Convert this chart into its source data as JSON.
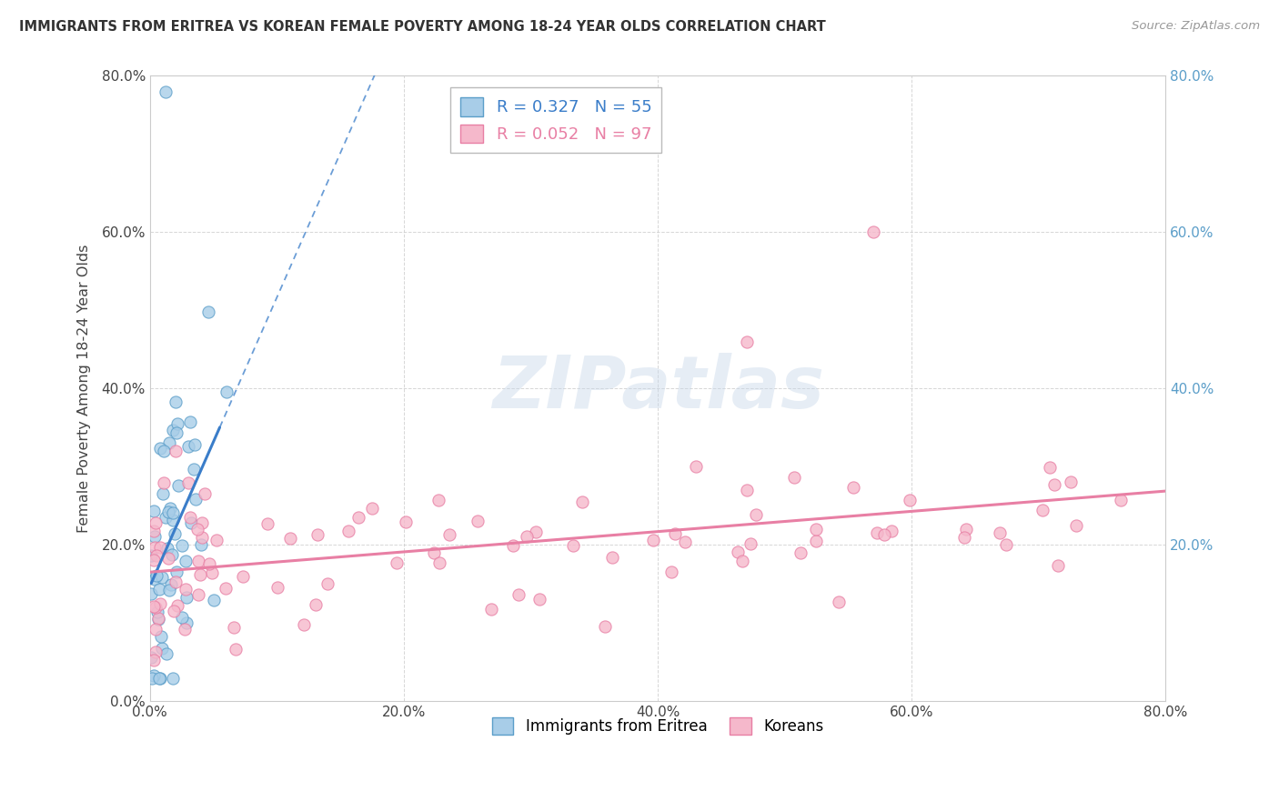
{
  "title": "IMMIGRANTS FROM ERITREA VS KOREAN FEMALE POVERTY AMONG 18-24 YEAR OLDS CORRELATION CHART",
  "source": "Source: ZipAtlas.com",
  "ylabel": "Female Poverty Among 18-24 Year Olds",
  "xlim": [
    0,
    0.8
  ],
  "ylim": [
    0,
    0.8
  ],
  "xticks": [
    0.0,
    0.2,
    0.4,
    0.6,
    0.8
  ],
  "yticks": [
    0.0,
    0.2,
    0.4,
    0.6,
    0.8
  ],
  "xticklabels": [
    "0.0%",
    "20.0%",
    "40.0%",
    "60.0%",
    "80.0%"
  ],
  "yticklabels": [
    "0.0%",
    "20.0%",
    "40.0%",
    "60.0%",
    "80.0%"
  ],
  "right_yticklabels": [
    "",
    "20.0%",
    "40.0%",
    "60.0%",
    "80.0%"
  ],
  "eritrea_color": "#a8cde8",
  "eritrea_edge_color": "#5b9ec9",
  "korean_color": "#f5b8cb",
  "korean_edge_color": "#e87fa4",
  "trend_eritrea_color": "#3a7dc9",
  "trend_korean_color": "#e87fa4",
  "legend_eritrea_R": "0.327",
  "legend_eritrea_N": "55",
  "legend_korean_R": "0.052",
  "legend_korean_N": "97",
  "watermark": "ZIPatlas",
  "grid_color": "#cccccc",
  "background_color": "#ffffff",
  "right_axis_color": "#5b9ec9"
}
